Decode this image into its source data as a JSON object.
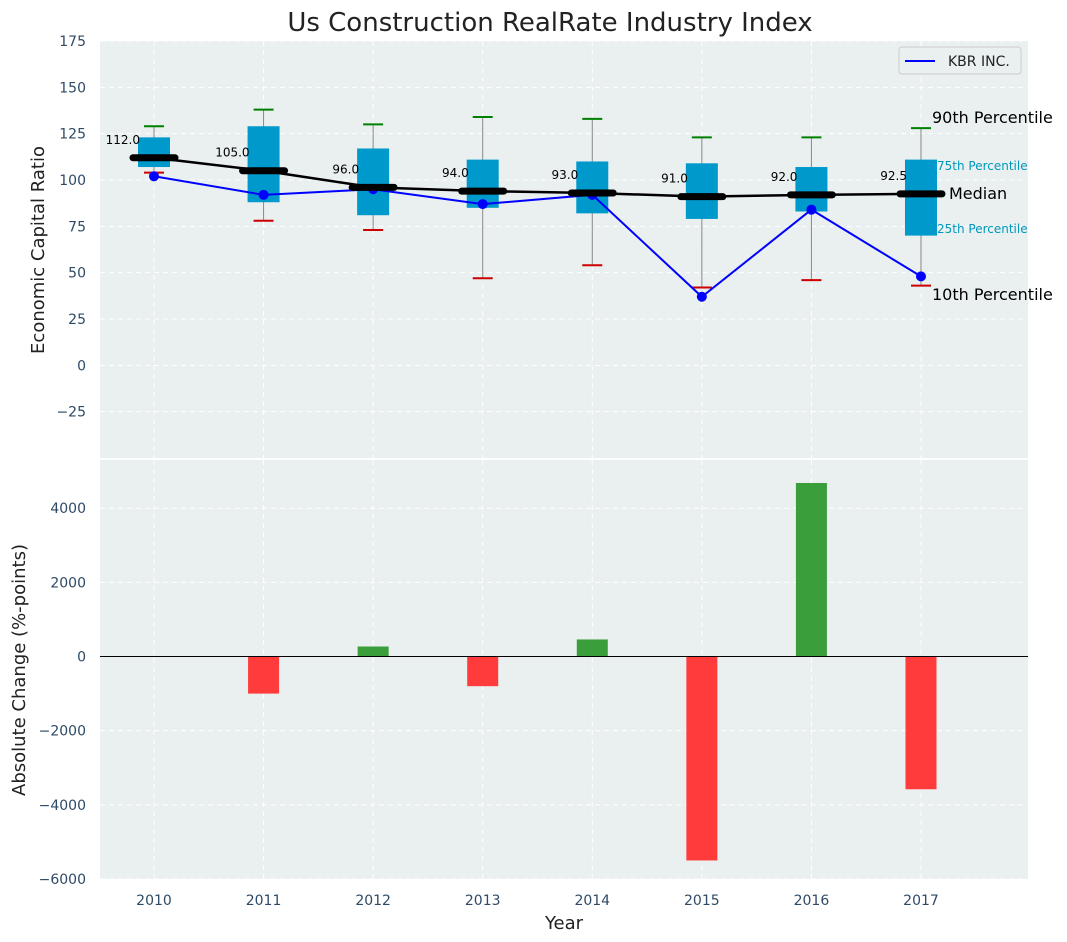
{
  "chart_data": [
    {
      "type": "box",
      "title": "Us Construction RealRate Industry Index",
      "ylabel": "Economic Capital Ratio",
      "ylim": [
        -50,
        175
      ],
      "yticks": [
        -25,
        0,
        25,
        50,
        75,
        100,
        125,
        150,
        175
      ],
      "categories": [
        "2010",
        "2011",
        "2012",
        "2013",
        "2014",
        "2015",
        "2016",
        "2017"
      ],
      "p10": [
        104,
        78,
        73,
        47,
        54,
        42,
        46,
        43
      ],
      "p25": [
        107,
        88,
        81,
        85,
        82,
        79,
        83,
        70
      ],
      "median": [
        112.0,
        105.0,
        96.0,
        94.0,
        93.0,
        91.0,
        92.0,
        92.5
      ],
      "median_labels": [
        "112.0",
        "105.0",
        "96.0",
        "94.0",
        "93.0",
        "91.0",
        "92.0",
        "92.5"
      ],
      "p75": [
        123,
        129,
        117,
        111,
        110,
        109,
        107,
        111
      ],
      "p90": [
        129,
        138,
        130,
        134,
        133,
        123,
        123,
        128
      ],
      "series": [
        {
          "name": "KBR INC.",
          "values": [
            102,
            92,
            95,
            87,
            92,
            37,
            84,
            48
          ],
          "color": "#0000ff"
        }
      ],
      "legend": "top-right",
      "annotations": {
        "p90": "90th Percentile",
        "p75": "75th Percentile",
        "median": "Median",
        "p25": "25th Percentile",
        "p10": "10th Percentile"
      },
      "colors": {
        "box": "#0099cc",
        "p90_cap": "#008000",
        "p10_cap": "#cc0000",
        "median_line": "#000000",
        "whisker": "#888888",
        "plot_bg": "#eaeff0"
      },
      "grid": true
    },
    {
      "type": "bar",
      "ylabel": "Absolute Change (%-points)",
      "xlabel": "Year",
      "ylim": [
        -6000,
        5300
      ],
      "yticks": [
        -6000,
        -4000,
        -2000,
        0,
        2000,
        4000
      ],
      "categories": [
        "2010",
        "2011",
        "2012",
        "2013",
        "2014",
        "2015",
        "2016",
        "2017"
      ],
      "values": [
        0,
        -1000,
        270,
        -800,
        460,
        -5500,
        4680,
        -3580
      ],
      "colors": {
        "positive": "#3a9e3a",
        "negative": "#ff3b3b",
        "zero_line": "#000000",
        "plot_bg": "#eaeff0"
      },
      "grid": true
    }
  ]
}
